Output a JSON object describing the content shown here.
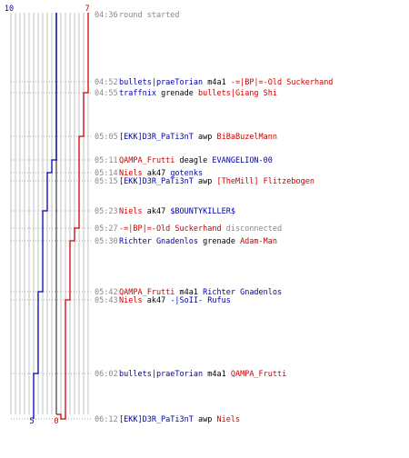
{
  "colors": {
    "blue": "#0000aa",
    "red": "#cc0000",
    "gray": "#888888",
    "grid": "#c0c0c0",
    "center": "#555555",
    "guide": "#aaaaaa"
  },
  "chart_data": {
    "type": "line",
    "series": [
      {
        "values": [
          10,
          10,
          10,
          10,
          9,
          8,
          8,
          7,
          7,
          7,
          6,
          6,
          5,
          5,
          5,
          5
        ]
      },
      {
        "values": [
          7,
          7,
          6,
          5,
          5,
          5,
          5,
          5,
          4,
          3,
          3,
          2,
          2,
          1,
          0,
          0
        ]
      }
    ],
    "blue_axis_labels": {
      "start": "10",
      "end": "5"
    },
    "red_axis_labels": {
      "start": "7",
      "end": "0"
    },
    "events": [
      {
        "time": "04:36",
        "parts": [
          {
            "t": "round started",
            "c": "gray"
          }
        ]
      },
      {
        "time": "04:52",
        "parts": [
          {
            "t": "bullets|praeTorian",
            "c": "blue"
          },
          {
            "t": " m4a1 ",
            "c": "black"
          },
          {
            "t": "-=|BP|=-Old Suckerhand",
            "c": "red"
          }
        ]
      },
      {
        "time": "04:55",
        "parts": [
          {
            "t": "traffnix",
            "c": "blue"
          },
          {
            "t": " grenade ",
            "c": "black"
          },
          {
            "t": "bullets|Giang Shi",
            "c": "red"
          }
        ]
      },
      {
        "time": "05:05",
        "parts": [
          {
            "t": "[EKK]D3R_PaTi3nT",
            "c": "blue"
          },
          {
            "t": " awp ",
            "c": "black"
          },
          {
            "t": "BiBaBuzelMann",
            "c": "red"
          }
        ]
      },
      {
        "time": "05:11",
        "parts": [
          {
            "t": "QAMPA_Frutti",
            "c": "red"
          },
          {
            "t": " deagle ",
            "c": "black"
          },
          {
            "t": "EVANGELION-00",
            "c": "blue"
          }
        ]
      },
      {
        "time": "05:14",
        "parts": [
          {
            "t": "Niels",
            "c": "red"
          },
          {
            "t": " ak47 ",
            "c": "black"
          },
          {
            "t": "gotenks",
            "c": "blue"
          }
        ]
      },
      {
        "time": "05:15",
        "parts": [
          {
            "t": "[EKK]D3R_PaTi3nT",
            "c": "blue"
          },
          {
            "t": " awp ",
            "c": "black"
          },
          {
            "t": "[TheMill] Flitzebogen",
            "c": "red"
          }
        ]
      },
      {
        "time": "05:23",
        "parts": [
          {
            "t": "Niels",
            "c": "red"
          },
          {
            "t": " ak47 ",
            "c": "black"
          },
          {
            "t": "$BOUNTYKILLER$",
            "c": "blue"
          }
        ]
      },
      {
        "time": "05:27",
        "parts": [
          {
            "t": "-=|BP|=-Old Suckerhand",
            "c": "red"
          },
          {
            "t": " disconnected",
            "c": "gray"
          }
        ]
      },
      {
        "time": "05:30",
        "parts": [
          {
            "t": "Richter Gnadenlos",
            "c": "blue"
          },
          {
            "t": " grenade ",
            "c": "black"
          },
          {
            "t": "Adam-Man",
            "c": "red"
          }
        ]
      },
      {
        "time": "05:42",
        "parts": [
          {
            "t": "QAMPA_Frutti",
            "c": "red"
          },
          {
            "t": " m4a1 ",
            "c": "black"
          },
          {
            "t": "Richter Gnadenlos",
            "c": "blue"
          }
        ]
      },
      {
        "time": "05:43",
        "parts": [
          {
            "t": "Niels",
            "c": "red"
          },
          {
            "t": " ak47 ",
            "c": "black"
          },
          {
            "t": "-|SoII- Rufus",
            "c": "blue"
          }
        ]
      },
      {
        "time": "06:02",
        "parts": [
          {
            "t": "bullets|praeTorian",
            "c": "blue"
          },
          {
            "t": " m4a1 ",
            "c": "black"
          },
          {
            "t": "QAMPA_Frutti",
            "c": "red"
          }
        ]
      },
      {
        "time": "06:12",
        "parts": [
          {
            "t": "[EKK]D3R_PaTi3nT",
            "c": "blue"
          },
          {
            "t": " awp ",
            "c": "black"
          },
          {
            "t": "Niels",
            "c": "red"
          }
        ]
      }
    ]
  }
}
